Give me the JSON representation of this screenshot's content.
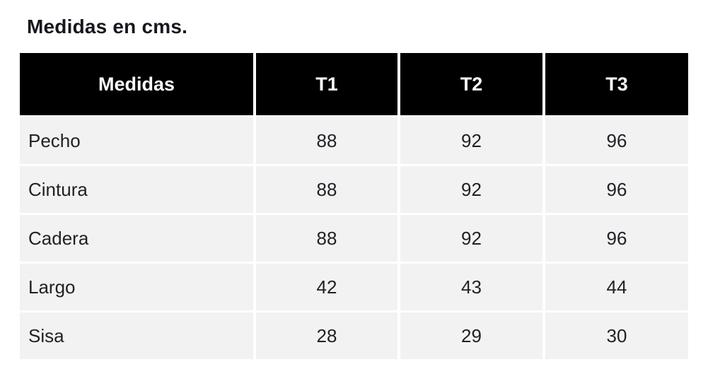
{
  "page": {
    "title": "Medidas en cms."
  },
  "colors": {
    "header_bg": "#000000",
    "header_text": "#ffffff",
    "row_bg": "#f2f2f2",
    "body_text": "#1e2125",
    "title_text": "#16181d",
    "page_bg": "#ffffff"
  },
  "chart_data": {
    "type": "table",
    "title": "Medidas en cms.",
    "columns": [
      "Medidas",
      "T1",
      "T2",
      "T3"
    ],
    "rows": [
      {
        "label": "Pecho",
        "values": [
          "88",
          "92",
          "96"
        ]
      },
      {
        "label": "Cintura",
        "values": [
          "88",
          "92",
          "96"
        ]
      },
      {
        "label": "Cadera",
        "values": [
          "88",
          "92",
          "96"
        ]
      },
      {
        "label": "Largo",
        "values": [
          "42",
          "43",
          "44"
        ]
      },
      {
        "label": "Sisa",
        "values": [
          "28",
          "29",
          "30"
        ]
      }
    ]
  }
}
